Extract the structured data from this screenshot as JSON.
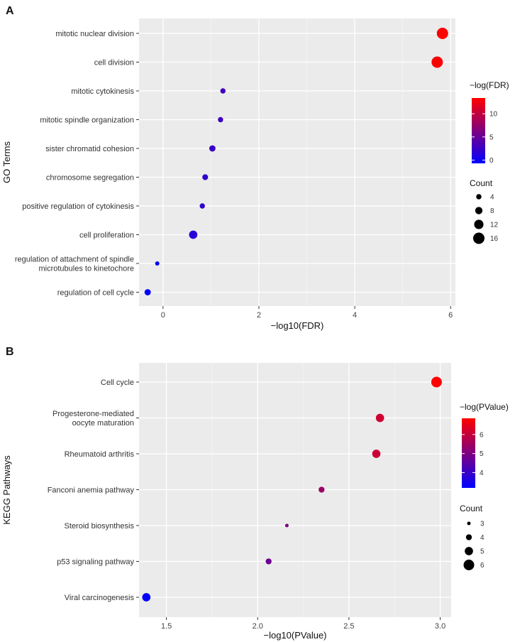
{
  "chart_data": [
    {
      "type": "scatter",
      "panel": "A",
      "xlabel": "−log10(FDR)",
      "ylabel": "GO Terms",
      "xlim": [
        -0.5,
        6.1
      ],
      "xticks": [
        0,
        2,
        4,
        6
      ],
      "categories": [
        "mitotic nuclear division",
        "cell division",
        "mitotic cytokinesis",
        "mitotic spindle organization",
        "sister chromatid cohesion",
        "chromosome segregation",
        "positive regulation of cytokinesis",
        "cell proliferation",
        "regulation of attachment of spindle\nmicrotubules to kinetochore",
        "regulation of cell cycle"
      ],
      "x": [
        5.83,
        5.72,
        1.25,
        1.2,
        1.03,
        0.88,
        0.82,
        0.63,
        -0.12,
        -0.32
      ],
      "color_values": [
        13.4,
        13.2,
        2.9,
        2.8,
        2.4,
        2.0,
        1.9,
        1.5,
        -0.3,
        -0.7
      ],
      "counts": [
        16,
        16,
        4,
        4,
        6,
        5,
        4,
        10,
        2,
        6
      ],
      "color_legend": {
        "title": "−log(FDR)",
        "ticks": [
          0,
          5,
          10
        ],
        "range": [
          -0.7,
          13.4
        ]
      },
      "size_legend": {
        "title": "Count",
        "values": [
          4,
          8,
          12,
          16
        ]
      }
    },
    {
      "type": "scatter",
      "panel": "B",
      "xlabel": "−log10(PValue)",
      "ylabel": "KEGG Pathways",
      "xlim": [
        1.35,
        3.06
      ],
      "xticks": [
        "1.5",
        "2.0",
        "2.5",
        "3.0"
      ],
      "categories": [
        "Cell cycle",
        "Progesterone-mediated\noocyte maturation",
        "Rheumatoid arthritis",
        "Fanconi anemia pathway",
        "Steroid biosynthesis",
        "p53 signaling pathway",
        "Viral carcinogenesis"
      ],
      "x": [
        2.98,
        2.67,
        2.65,
        2.35,
        2.16,
        2.06,
        1.39
      ],
      "color_values": [
        6.85,
        6.15,
        6.1,
        5.4,
        5.0,
        4.75,
        3.2
      ],
      "counts": [
        6,
        5,
        5,
        4,
        3,
        4,
        5
      ],
      "color_legend": {
        "title": "−log(PValue)",
        "ticks": [
          4,
          5,
          6
        ],
        "range": [
          3.2,
          6.85
        ]
      },
      "size_legend": {
        "title": "Count",
        "values": [
          3,
          4,
          5,
          6
        ]
      }
    }
  ]
}
